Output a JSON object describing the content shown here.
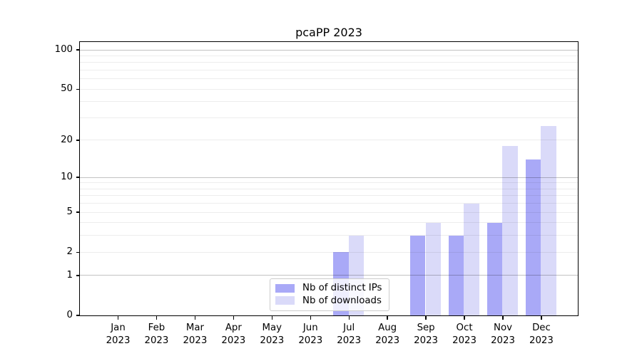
{
  "figure": {
    "title": "pcaPP 2023"
  },
  "legend": {
    "items": [
      {
        "label": "Nb of distinct IPs"
      },
      {
        "label": "Nb of downloads"
      }
    ]
  },
  "colors": {
    "bar_ips": "#a9a9f7",
    "bar_downloads": "#dadaf9",
    "grid_minor": "rgba(0,0,0,0.07)",
    "grid_major": "rgba(0,0,0,0.24)",
    "spine": "#000000",
    "legend_border": "#cccccc",
    "legend_bg": "rgba(255,255,255,0.8)"
  },
  "chart_data": {
    "type": "bar",
    "title": "pcaPP 2023",
    "categories": [
      "Jan 2023",
      "Feb 2023",
      "Mar 2023",
      "Apr 2023",
      "May 2023",
      "Jun 2023",
      "Jul 2023",
      "Aug 2023",
      "Sep 2023",
      "Oct 2023",
      "Nov 2023",
      "Dec 2023"
    ],
    "x_months": [
      "Jan",
      "Feb",
      "Mar",
      "Apr",
      "May",
      "Jun",
      "Jul",
      "Aug",
      "Sep",
      "Oct",
      "Nov",
      "Dec"
    ],
    "x_year": "2023",
    "series": [
      {
        "name": "Nb of distinct IPs",
        "color": "#a9a9f7",
        "values": [
          0,
          0,
          0,
          0,
          0,
          0,
          2,
          0,
          3,
          3,
          4,
          14
        ]
      },
      {
        "name": "Nb of downloads",
        "color": "#dadaf9",
        "values": [
          0,
          0,
          0,
          0,
          0,
          0,
          3,
          0,
          4,
          6,
          18,
          26
        ]
      }
    ],
    "xlabel": "",
    "ylabel": "",
    "y_axis": {
      "scale": "log1p",
      "labeled_ticks": [
        0,
        1,
        2,
        5,
        10,
        20,
        50,
        100
      ],
      "minor_gridlines": [
        2,
        3,
        4,
        5,
        6,
        7,
        8,
        9,
        20,
        30,
        40,
        50,
        60,
        70,
        80,
        90
      ],
      "major_gridlines": [
        1,
        10,
        100
      ],
      "top_value": 117
    },
    "grid": true,
    "legend_position": "lower center"
  }
}
